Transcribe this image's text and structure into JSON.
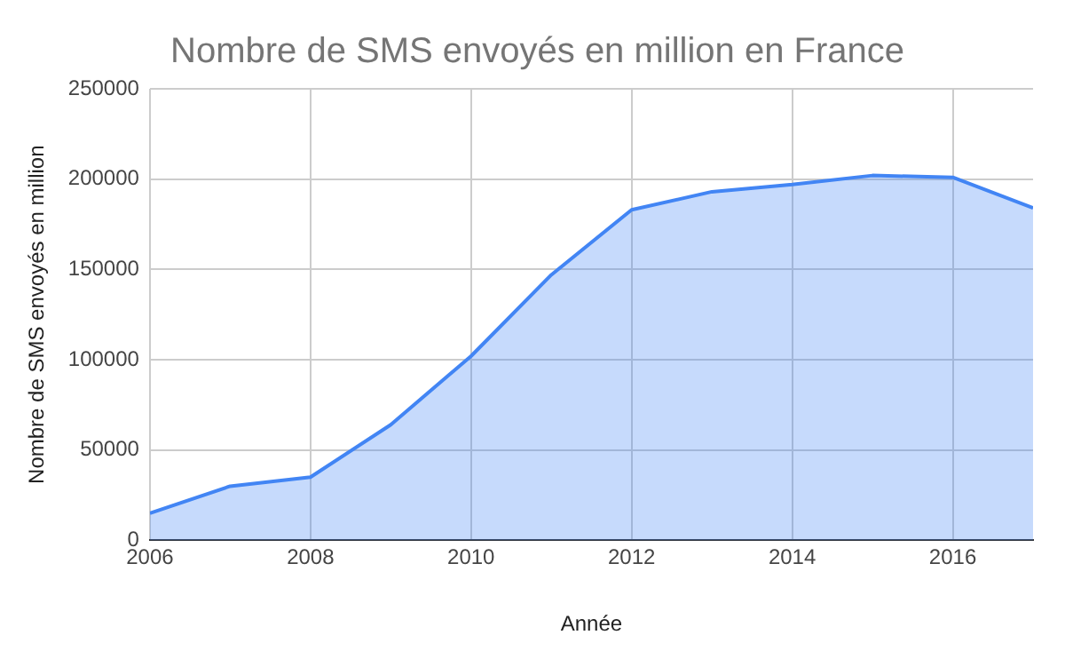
{
  "chart_data": {
    "type": "area",
    "title": "Nombre de SMS envoyés en million en France",
    "xlabel": "Année",
    "ylabel": "Nombre de SMS envoyés en million",
    "x": [
      2006,
      2007,
      2008,
      2009,
      2010,
      2011,
      2012,
      2013,
      2014,
      2015,
      2016,
      2017
    ],
    "series": [
      {
        "color": "#4285f4",
        "values": [
          15000,
          30000,
          35000,
          64000,
          102000,
          147000,
          183000,
          193000,
          197000,
          202000,
          201000,
          184000
        ]
      }
    ],
    "xlim": [
      2006,
      2017
    ],
    "xticks": [
      2006,
      2008,
      2010,
      2012,
      2014,
      2016
    ],
    "ylim": [
      0,
      250000
    ],
    "yticks": [
      0,
      50000,
      100000,
      150000,
      200000,
      250000
    ],
    "grid": true,
    "legend": false,
    "marker": "none",
    "line_style": "solid"
  }
}
